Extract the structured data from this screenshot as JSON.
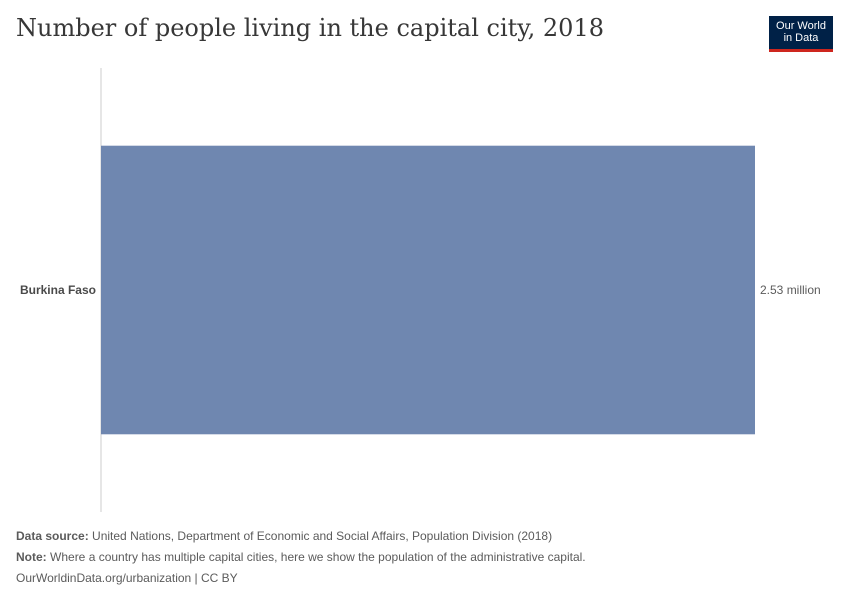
{
  "header": {
    "title": "Number of people living in the capital city, 2018",
    "logo_line1": "Our World",
    "logo_line2": "in Data"
  },
  "chart_data": {
    "type": "bar",
    "orientation": "horizontal",
    "title": "Number of people living in the capital city, 2018",
    "categories": [
      "Burkina Faso"
    ],
    "values": [
      2530000
    ],
    "value_labels": [
      "2.53 million"
    ],
    "xlim": [
      0,
      2530000
    ],
    "bar_color": "#6f87b0",
    "grid": false
  },
  "footer": {
    "source_label": "Data source:",
    "source_text": "United Nations, Department of Economic and Social Affairs, Population Division (2018)",
    "note_label": "Note:",
    "note_text": "Where a country has multiple capital cities, here we show the population of the administrative capital.",
    "credit": "OurWorldinData.org/urbanization | CC BY"
  }
}
